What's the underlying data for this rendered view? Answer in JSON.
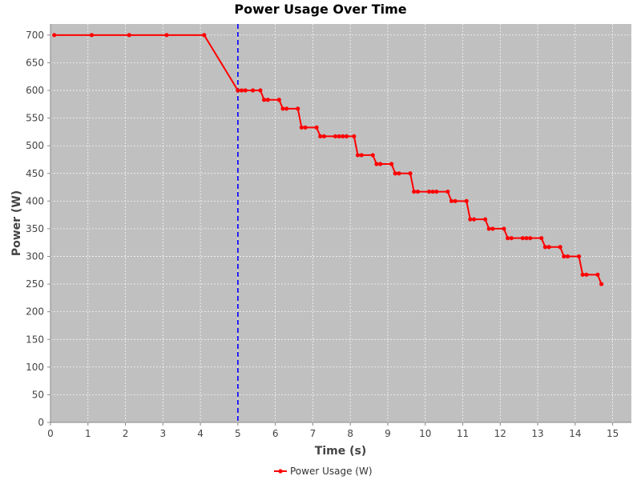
{
  "chart_data": {
    "type": "line",
    "title": "Power Usage Over Time",
    "xlabel": "Time (s)",
    "ylabel": "Power (W)",
    "xlim": [
      0,
      15.5
    ],
    "ylim": [
      0,
      720
    ],
    "xticks": [
      0,
      1,
      2,
      3,
      4,
      5,
      6,
      7,
      8,
      9,
      10,
      11,
      12,
      13,
      14,
      15
    ],
    "yticks": [
      0,
      50,
      100,
      150,
      200,
      250,
      300,
      350,
      400,
      450,
      500,
      550,
      600,
      650,
      700
    ],
    "grid": true,
    "legend_position": "bottom-center",
    "background_color": "#c0c0c0",
    "series": [
      {
        "name": "Power Usage (W)",
        "color": "#ff0000",
        "marker": "circle",
        "points": [
          [
            0.1,
            700
          ],
          [
            1.1,
            700
          ],
          [
            2.1,
            700
          ],
          [
            3.1,
            700
          ],
          [
            4.1,
            700
          ],
          [
            5.0,
            600
          ],
          [
            5.1,
            600
          ],
          [
            5.2,
            600
          ],
          [
            5.4,
            600
          ],
          [
            5.6,
            600
          ],
          [
            5.7,
            583
          ],
          [
            5.8,
            583
          ],
          [
            6.1,
            583
          ],
          [
            6.2,
            567
          ],
          [
            6.3,
            567
          ],
          [
            6.6,
            567
          ],
          [
            6.7,
            533
          ],
          [
            6.8,
            533
          ],
          [
            7.1,
            533
          ],
          [
            7.2,
            517
          ],
          [
            7.3,
            517
          ],
          [
            7.6,
            517
          ],
          [
            7.7,
            517
          ],
          [
            7.8,
            517
          ],
          [
            7.9,
            517
          ],
          [
            8.1,
            517
          ],
          [
            8.2,
            483
          ],
          [
            8.3,
            483
          ],
          [
            8.6,
            483
          ],
          [
            8.7,
            467
          ],
          [
            8.8,
            467
          ],
          [
            9.1,
            467
          ],
          [
            9.2,
            450
          ],
          [
            9.3,
            450
          ],
          [
            9.6,
            450
          ],
          [
            9.7,
            417
          ],
          [
            9.8,
            417
          ],
          [
            10.1,
            417
          ],
          [
            10.2,
            417
          ],
          [
            10.3,
            417
          ],
          [
            10.6,
            417
          ],
          [
            10.7,
            400
          ],
          [
            10.8,
            400
          ],
          [
            11.1,
            400
          ],
          [
            11.2,
            367
          ],
          [
            11.3,
            367
          ],
          [
            11.6,
            367
          ],
          [
            11.7,
            350
          ],
          [
            11.8,
            350
          ],
          [
            12.1,
            350
          ],
          [
            12.2,
            333
          ],
          [
            12.3,
            333
          ],
          [
            12.6,
            333
          ],
          [
            12.7,
            333
          ],
          [
            12.8,
            333
          ],
          [
            13.1,
            333
          ],
          [
            13.2,
            317
          ],
          [
            13.3,
            317
          ],
          [
            13.6,
            317
          ],
          [
            13.7,
            300
          ],
          [
            13.8,
            300
          ],
          [
            14.1,
            300
          ],
          [
            14.2,
            267
          ],
          [
            14.3,
            267
          ],
          [
            14.6,
            267
          ],
          [
            14.7,
            250
          ]
        ]
      }
    ],
    "markers": [
      {
        "type": "vertical-line",
        "x": 5,
        "color": "#0000ff",
        "style": "dashed"
      }
    ]
  }
}
